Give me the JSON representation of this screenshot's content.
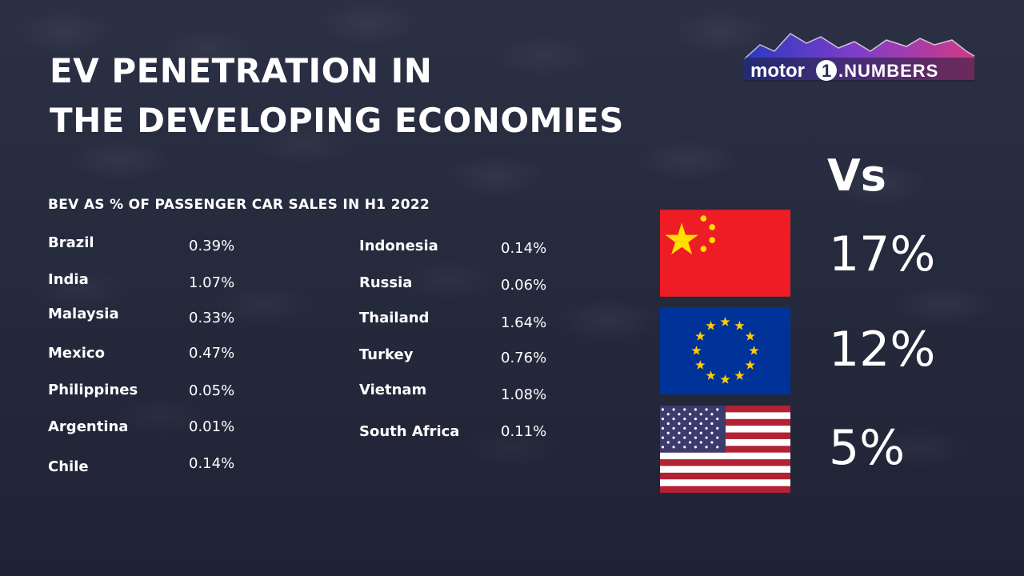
{
  "title": {
    "line1": "EV PENETRATION IN",
    "line2": "THE DEVELOPING ECONOMIES"
  },
  "logo": {
    "brand_left": "motor",
    "brand_numeral": "1",
    "brand_right": ".NUMBERS"
  },
  "colors": {
    "background": "#232639",
    "text": "#ffffff",
    "china_red": "#ee1c25",
    "china_star": "#ffde00",
    "eu_blue": "#003399",
    "eu_star": "#ffcc00",
    "us_red": "#b22234",
    "us_blue": "#3c3b6e"
  },
  "chart_data": {
    "type": "table",
    "title": "BEV AS % OF PASSENGER CAR SALES IN H1 2022",
    "columns": [
      {
        "rows": [
          {
            "country": "Brazil",
            "value": "0.39%"
          },
          {
            "country": "India",
            "value": "1.07%"
          },
          {
            "country": "Malaysia",
            "value": "0.33%"
          },
          {
            "country": "Mexico",
            "value": "0.47%"
          },
          {
            "country": "Philippines",
            "value": "0.05%"
          },
          {
            "country": "Argentina",
            "value": "0.01%"
          },
          {
            "country": "Chile",
            "value": "0.14%"
          }
        ]
      },
      {
        "rows": [
          {
            "country": "Indonesia",
            "value": "0.14%"
          },
          {
            "country": "Russia",
            "value": "0.06%"
          },
          {
            "country": "Thailand",
            "value": "1.64%"
          },
          {
            "country": "Turkey",
            "value": "0.76%"
          },
          {
            "country": "Vietnam",
            "value": "1.08%"
          },
          {
            "country": "South Africa",
            "value": "0.11%"
          }
        ]
      }
    ],
    "comparison": {
      "label": "Vs",
      "items": [
        {
          "flag": "china-flag-icon",
          "value": "17%"
        },
        {
          "flag": "eu-flag-icon",
          "value": "12%"
        },
        {
          "flag": "us-flag-icon",
          "value": "5%"
        }
      ]
    }
  }
}
